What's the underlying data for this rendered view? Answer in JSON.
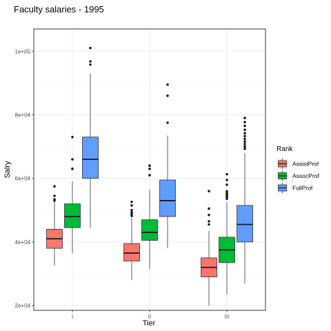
{
  "chart_data": {
    "type": "boxplot",
    "title": "Faculty salaries - 1995",
    "xlabel": "Tier",
    "ylabel": "Salry",
    "categories": [
      "I",
      "II",
      "III"
    ],
    "ylim": [
      18500,
      107000
    ],
    "yticks": [
      {
        "value": 20000,
        "label": "2e+04"
      },
      {
        "value": 40000,
        "label": "4e+04"
      },
      {
        "value": 60000,
        "label": "6e+04"
      },
      {
        "value": 80000,
        "label": "8e+04"
      },
      {
        "value": 100000,
        "label": "1e+05"
      }
    ],
    "grid": true,
    "legend": {
      "title": "Rank",
      "placement": "right",
      "items": [
        {
          "name": "AssistProf",
          "color": "#F8766D"
        },
        {
          "name": "AssocProf",
          "color": "#00BA38"
        },
        {
          "name": "FullProf",
          "color": "#619CFF"
        }
      ]
    },
    "series": [
      {
        "name": "AssistProf",
        "color": "#F8766D",
        "boxes": [
          {
            "category": "I",
            "whisker_low": 32500,
            "q1": 38000,
            "median": 41000,
            "q3": 44000,
            "whisker_high": 52500,
            "outliers": [
              53000,
              53400,
              54500,
              57500
            ]
          },
          {
            "category": "II",
            "whisker_low": 28000,
            "q1": 34000,
            "median": 36500,
            "q3": 39500,
            "whisker_high": 47500,
            "outliers": [
              48200,
              48800,
              49300,
              50000,
              51500,
              52600
            ]
          },
          {
            "category": "III",
            "whisker_low": 20000,
            "q1": 29000,
            "median": 32000,
            "q3": 35000,
            "whisker_high": 43500,
            "outliers": [
              45500,
              46500,
              48500,
              50500,
              56000
            ]
          }
        ]
      },
      {
        "name": "AssocProf",
        "color": "#00BA38",
        "boxes": [
          {
            "category": "I",
            "whisker_low": 36500,
            "q1": 44500,
            "median": 48000,
            "q3": 52000,
            "whisker_high": 59000,
            "outliers": [
              63000,
              66000,
              73000
            ]
          },
          {
            "category": "II",
            "whisker_low": 31500,
            "q1": 40500,
            "median": 43000,
            "q3": 47000,
            "whisker_high": 56500,
            "outliers": [
              61000,
              63000,
              64000
            ]
          },
          {
            "category": "III",
            "whisker_low": 23500,
            "q1": 33500,
            "median": 37500,
            "q3": 41500,
            "whisker_high": 52500,
            "outliers": [
              53600,
              54100,
              54600,
              55000,
              55400,
              55900,
              58000,
              59500,
              61300
            ]
          }
        ]
      },
      {
        "name": "FullProf",
        "color": "#619CFF",
        "boxes": [
          {
            "category": "I",
            "whisker_low": 44500,
            "q1": 60000,
            "median": 66000,
            "q3": 73000,
            "whisker_high": 93000,
            "outliers": [
              95800,
              96800,
              101000
            ]
          },
          {
            "category": "II",
            "whisker_low": 38000,
            "q1": 48000,
            "median": 53000,
            "q3": 59500,
            "whisker_high": 73500,
            "outliers": [
              77500,
              86000,
              89500
            ]
          },
          {
            "category": "III",
            "whisker_low": 27000,
            "q1": 40000,
            "median": 45500,
            "q3": 51500,
            "whisker_high": 68000,
            "outliers": [
              69300,
              70000,
              70800,
              71600,
              72400,
              73300,
              74200,
              75300,
              76500,
              77700,
              79000
            ]
          }
        ]
      }
    ]
  }
}
